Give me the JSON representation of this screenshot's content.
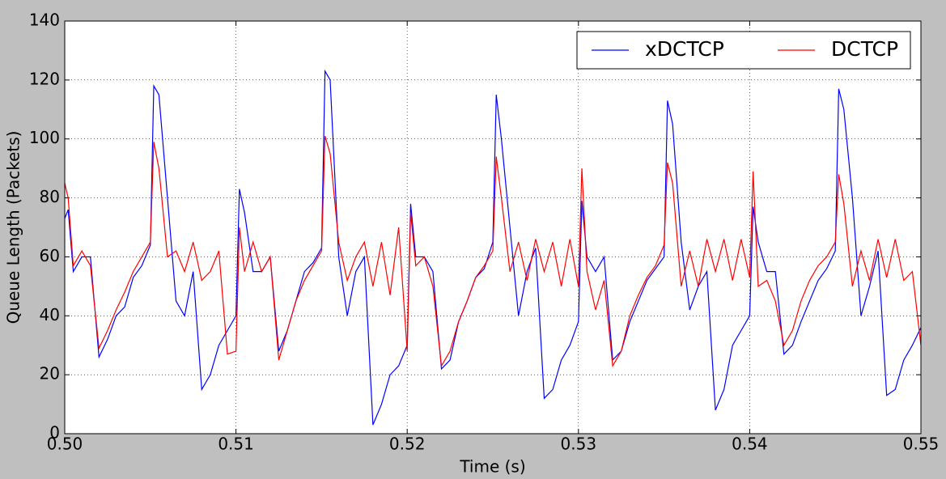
{
  "chart_data": {
    "type": "line",
    "xlabel": "Time (s)",
    "ylabel": "Queue Length (Packets)",
    "x": [
      0.5,
      0.5002,
      0.5005,
      0.501,
      0.5015,
      0.502,
      0.5025,
      0.503,
      0.5035,
      0.504,
      0.5045,
      0.505,
      0.5052,
      0.5055,
      0.506,
      0.5065,
      0.507,
      0.5075,
      0.508,
      0.5085,
      0.509,
      0.5095,
      0.51,
      0.5102,
      0.5105,
      0.511,
      0.5115,
      0.512,
      0.5125,
      0.513,
      0.5135,
      0.514,
      0.5145,
      0.515,
      0.5152,
      0.5155,
      0.516,
      0.5165,
      0.517,
      0.5175,
      0.518,
      0.5185,
      0.519,
      0.5195,
      0.52,
      0.5202,
      0.5205,
      0.521,
      0.5215,
      0.522,
      0.5225,
      0.523,
      0.5235,
      0.524,
      0.5245,
      0.525,
      0.5252,
      0.5255,
      0.526,
      0.5265,
      0.527,
      0.5275,
      0.528,
      0.5285,
      0.529,
      0.5295,
      0.53,
      0.5302,
      0.5305,
      0.531,
      0.5315,
      0.532,
      0.5325,
      0.533,
      0.5335,
      0.534,
      0.5345,
      0.535,
      0.5352,
      0.5355,
      0.536,
      0.5365,
      0.537,
      0.5375,
      0.538,
      0.5385,
      0.539,
      0.5395,
      0.54,
      0.5402,
      0.5405,
      0.541,
      0.5415,
      0.542,
      0.5425,
      0.543,
      0.5435,
      0.544,
      0.5445,
      0.545,
      0.5452,
      0.5455,
      0.546,
      0.5465,
      0.547,
      0.5475,
      0.548,
      0.5485,
      0.549,
      0.5495,
      0.55
    ],
    "series": [
      {
        "name": "xDCTCP",
        "color": "#0000ff",
        "values": [
          73,
          76,
          55,
          60,
          60,
          26,
          32,
          40,
          43,
          53,
          57,
          64,
          118,
          115,
          80,
          45,
          40,
          55,
          15,
          20,
          30,
          35,
          40,
          83,
          75,
          55,
          55,
          60,
          28,
          35,
          45,
          55,
          58,
          63,
          123,
          120,
          60,
          40,
          55,
          60,
          3,
          10,
          20,
          23,
          30,
          78,
          60,
          60,
          55,
          22,
          25,
          38,
          45,
          53,
          56,
          65,
          115,
          100,
          70,
          40,
          55,
          63,
          12,
          15,
          25,
          30,
          38,
          79,
          60,
          55,
          60,
          25,
          28,
          38,
          45,
          52,
          56,
          60,
          113,
          105,
          65,
          42,
          50,
          55,
          8,
          15,
          30,
          35,
          40,
          77,
          65,
          55,
          55,
          27,
          30,
          38,
          45,
          52,
          56,
          62,
          117,
          110,
          80,
          40,
          50,
          62,
          13,
          15,
          25,
          30,
          36
        ]
      },
      {
        "name": "DCTCP",
        "color": "#ff0000",
        "values": [
          85,
          80,
          57,
          62,
          57,
          29,
          35,
          42,
          48,
          55,
          60,
          65,
          99,
          90,
          60,
          62,
          55,
          65,
          52,
          55,
          62,
          27,
          28,
          70,
          55,
          65,
          55,
          60,
          25,
          35,
          45,
          52,
          57,
          62,
          101,
          95,
          65,
          52,
          60,
          65,
          50,
          65,
          47,
          70,
          28,
          75,
          57,
          60,
          50,
          23,
          28,
          38,
          45,
          53,
          57,
          62,
          94,
          80,
          55,
          65,
          52,
          66,
          55,
          65,
          50,
          66,
          50,
          90,
          55,
          42,
          52,
          23,
          28,
          40,
          47,
          53,
          57,
          64,
          92,
          85,
          50,
          62,
          50,
          66,
          55,
          66,
          52,
          66,
          53,
          89,
          50,
          52,
          45,
          30,
          35,
          45,
          52,
          57,
          60,
          65,
          88,
          78,
          50,
          62,
          52,
          66,
          53,
          66,
          52,
          55,
          30
        ]
      }
    ],
    "xlim": [
      0.5,
      0.55
    ],
    "xticks": [
      {
        "value": 0.5,
        "label": "0.50"
      },
      0.51,
      0.52,
      0.53,
      0.54,
      {
        "value": 0.55,
        "label": "0.55"
      }
    ],
    "ylim": [
      0,
      140
    ],
    "yticks": [
      0,
      20,
      40,
      60,
      80,
      100,
      120,
      140
    ],
    "grid": true,
    "legend": "upper right"
  }
}
